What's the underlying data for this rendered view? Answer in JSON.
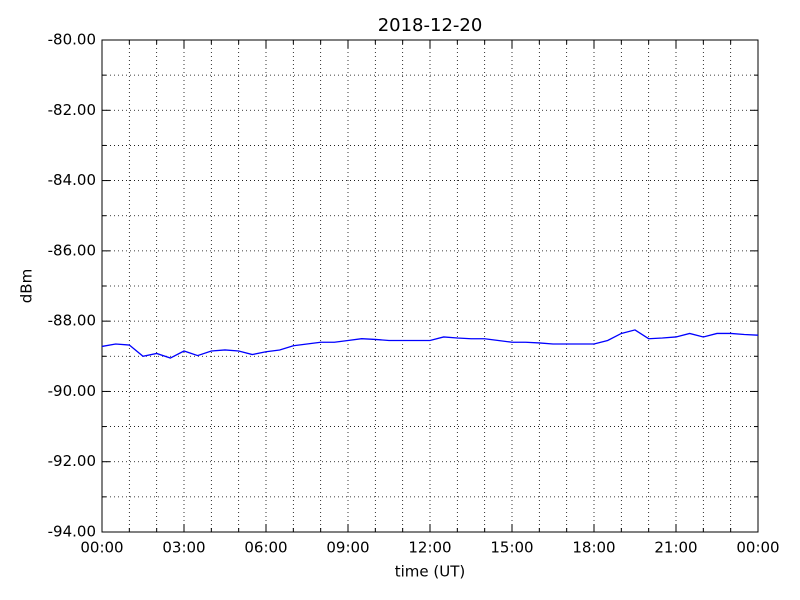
{
  "chart_data": {
    "type": "line",
    "title": "2018-12-20",
    "xlabel": "time (UT)",
    "ylabel": "dBm",
    "x": [
      0,
      0.5,
      1,
      1.5,
      2,
      2.5,
      3,
      3.5,
      4,
      4.5,
      5,
      5.5,
      6,
      6.5,
      7,
      7.5,
      8,
      8.5,
      9,
      9.5,
      10,
      10.5,
      11,
      11.5,
      12,
      12.5,
      13,
      13.5,
      14,
      14.5,
      15,
      15.5,
      16,
      16.5,
      17,
      17.5,
      18,
      18.5,
      19,
      19.5,
      20,
      20.5,
      21,
      21.5,
      22,
      22.5,
      23,
      23.5,
      24
    ],
    "series": [
      {
        "name": "dBm",
        "color": "#0000ff",
        "values": [
          -88.72,
          -88.65,
          -88.68,
          -89.0,
          -88.92,
          -89.05,
          -88.85,
          -88.98,
          -88.85,
          -88.82,
          -88.85,
          -88.95,
          -88.87,
          -88.82,
          -88.7,
          -88.65,
          -88.6,
          -88.6,
          -88.55,
          -88.5,
          -88.52,
          -88.55,
          -88.55,
          -88.55,
          -88.55,
          -88.45,
          -88.48,
          -88.5,
          -88.5,
          -88.55,
          -88.6,
          -88.6,
          -88.62,
          -88.65,
          -88.65,
          -88.65,
          -88.65,
          -88.55,
          -88.35,
          -88.25,
          -88.5,
          -88.48,
          -88.45,
          -88.35,
          -88.45,
          -88.35,
          -88.35,
          -88.38,
          -88.4
        ]
      }
    ],
    "xlim": [
      0,
      24
    ],
    "xticks": [
      {
        "value": 0,
        "label": "00:00"
      },
      {
        "value": 3,
        "label": "03:00"
      },
      {
        "value": 6,
        "label": "06:00"
      },
      {
        "value": 9,
        "label": "09:00"
      },
      {
        "value": 12,
        "label": "12:00"
      },
      {
        "value": 15,
        "label": "15:00"
      },
      {
        "value": 18,
        "label": "18:00"
      },
      {
        "value": 21,
        "label": "21:00"
      },
      {
        "value": 24,
        "label": "00:00"
      }
    ],
    "xminorticks": [
      1,
      2,
      4,
      5,
      7,
      8,
      10,
      11,
      13,
      14,
      16,
      17,
      19,
      20,
      22,
      23
    ],
    "ylim": [
      -94,
      -80
    ],
    "yticks": [
      {
        "value": -94,
        "label": "-94.00"
      },
      {
        "value": -92,
        "label": "-92.00"
      },
      {
        "value": -90,
        "label": "-90.00"
      },
      {
        "value": -88,
        "label": "-88.00"
      },
      {
        "value": -86,
        "label": "-86.00"
      },
      {
        "value": -84,
        "label": "-84.00"
      },
      {
        "value": -82,
        "label": "-82.00"
      },
      {
        "value": -80,
        "label": "-80.00"
      }
    ],
    "yminorticks": [
      -93,
      -91,
      -89,
      -87,
      -85,
      -83,
      -81
    ],
    "grid": true
  }
}
